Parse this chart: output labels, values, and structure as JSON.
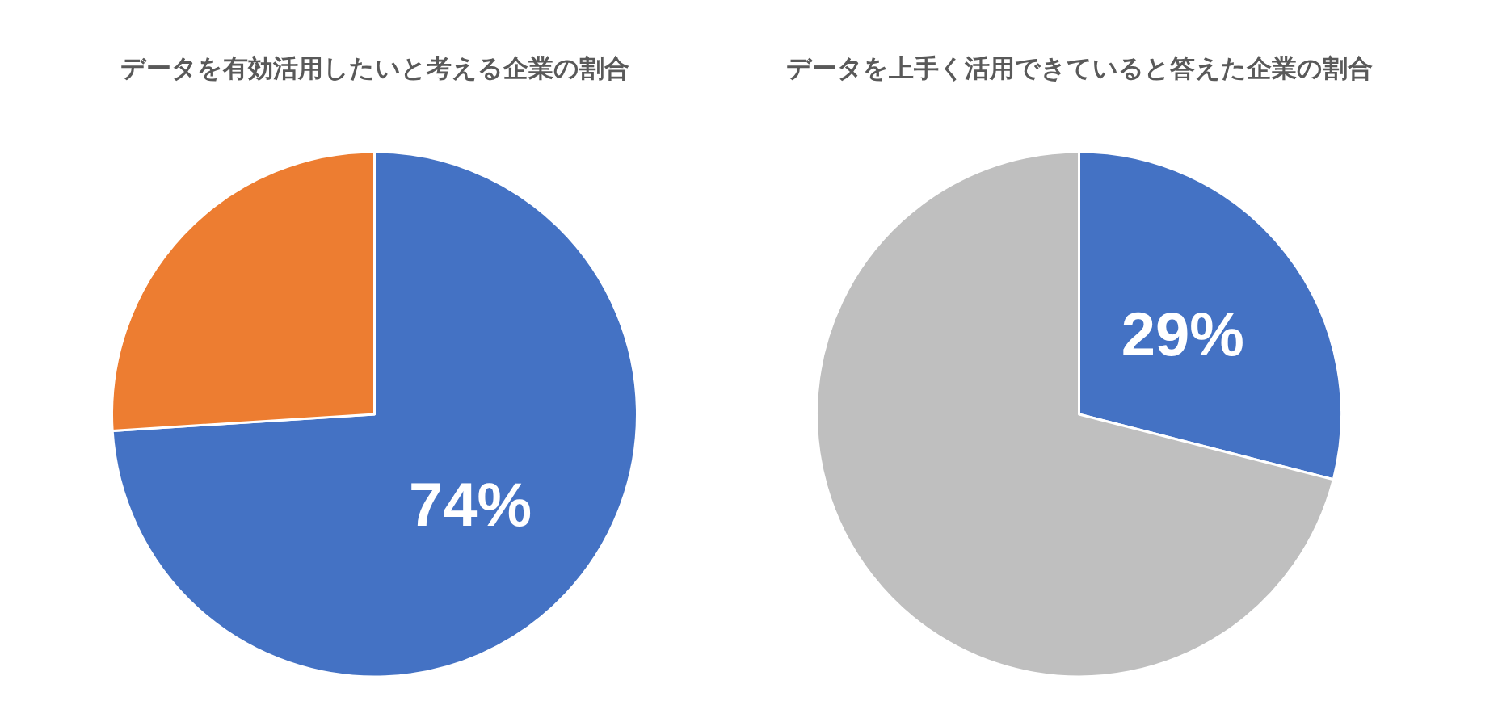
{
  "chart_data": [
    {
      "type": "pie",
      "title": "データを有効活用したいと考える企業の割合",
      "categories": [
        null,
        null
      ],
      "values": [
        74,
        26
      ],
      "colors": [
        "#4472c4",
        "#ed7d31"
      ],
      "value_labels": [
        "74%",
        null
      ]
    },
    {
      "type": "pie",
      "title": "データを上手く活用できていると答えた企業の割合",
      "categories": [
        null,
        null
      ],
      "values": [
        29,
        71
      ],
      "colors": [
        "#4472c4",
        "#bfbfbf"
      ],
      "value_labels": [
        "29%",
        null
      ]
    }
  ]
}
